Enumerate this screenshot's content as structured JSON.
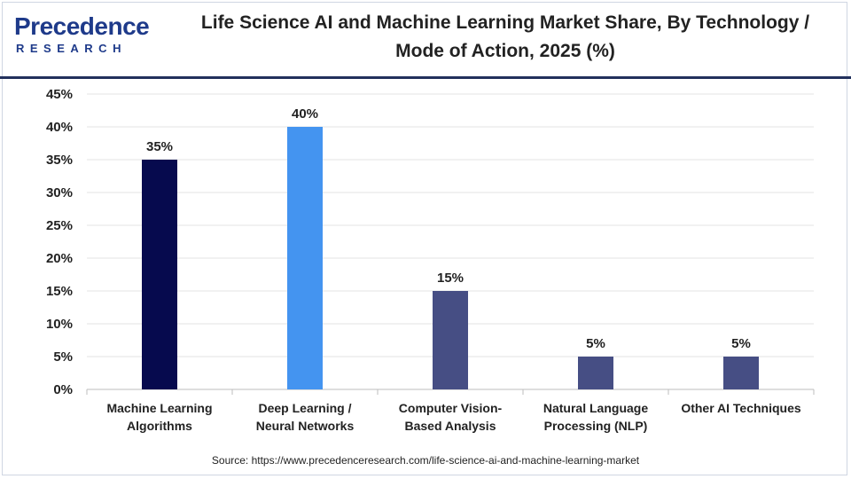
{
  "logo": {
    "line1": "Precedence",
    "line2": "RESEARCH"
  },
  "source": "Source: https://www.precedenceresearch.com/life-science-ai-and-machine-learning-market",
  "colors": {
    "navy": "#060a4e",
    "blue": "#4494f0",
    "slate": "#464e84",
    "rule": "#22305c"
  },
  "chart_data": {
    "type": "bar",
    "title": "Life Science AI and Machine Learning Market Share, By Technology / Mode of Action, 2025 (%)",
    "categories": [
      [
        "Machine Learning",
        "Algorithms"
      ],
      [
        "Deep Learning /",
        "Neural Networks"
      ],
      [
        "Computer Vision-",
        "Based Analysis"
      ],
      [
        "Natural Language",
        "Processing (NLP)"
      ],
      [
        "Other AI Techniques"
      ]
    ],
    "values": [
      35,
      40,
      15,
      5,
      5
    ],
    "data_labels": [
      "35%",
      "40%",
      "15%",
      "5%",
      "5%"
    ],
    "bar_colors": [
      "#060a4e",
      "#4494f0",
      "#464e84",
      "#464e84",
      "#464e84"
    ],
    "ylim": [
      0,
      45
    ],
    "yticks": [
      0,
      5,
      10,
      15,
      20,
      25,
      30,
      35,
      40,
      45
    ],
    "ytick_labels": [
      "0%",
      "5%",
      "10%",
      "15%",
      "20%",
      "25%",
      "30%",
      "35%",
      "40%",
      "45%"
    ],
    "grid": true,
    "legend": "none"
  }
}
